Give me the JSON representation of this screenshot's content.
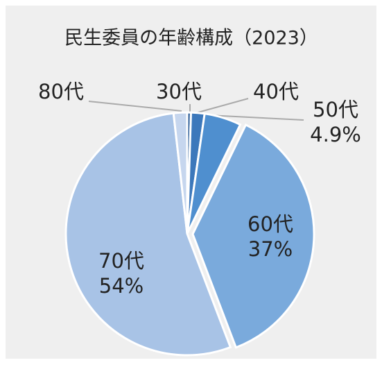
{
  "chart_data": {
    "type": "pie",
    "title": "民生委員の年齢構成（2023）",
    "categories": [
      "30代",
      "40代",
      "50代",
      "60代",
      "70代",
      "80代"
    ],
    "values": [
      0.5,
      1.8,
      4.9,
      37,
      54,
      1.8
    ],
    "value_labels": [
      null,
      null,
      "4.9%",
      "37%",
      "54%",
      null
    ],
    "colors": [
      "#2e5f99",
      "#3c78bb",
      "#4f8fcf",
      "#7aaadc",
      "#a8c3e6",
      "#c6d6ee"
    ]
  }
}
